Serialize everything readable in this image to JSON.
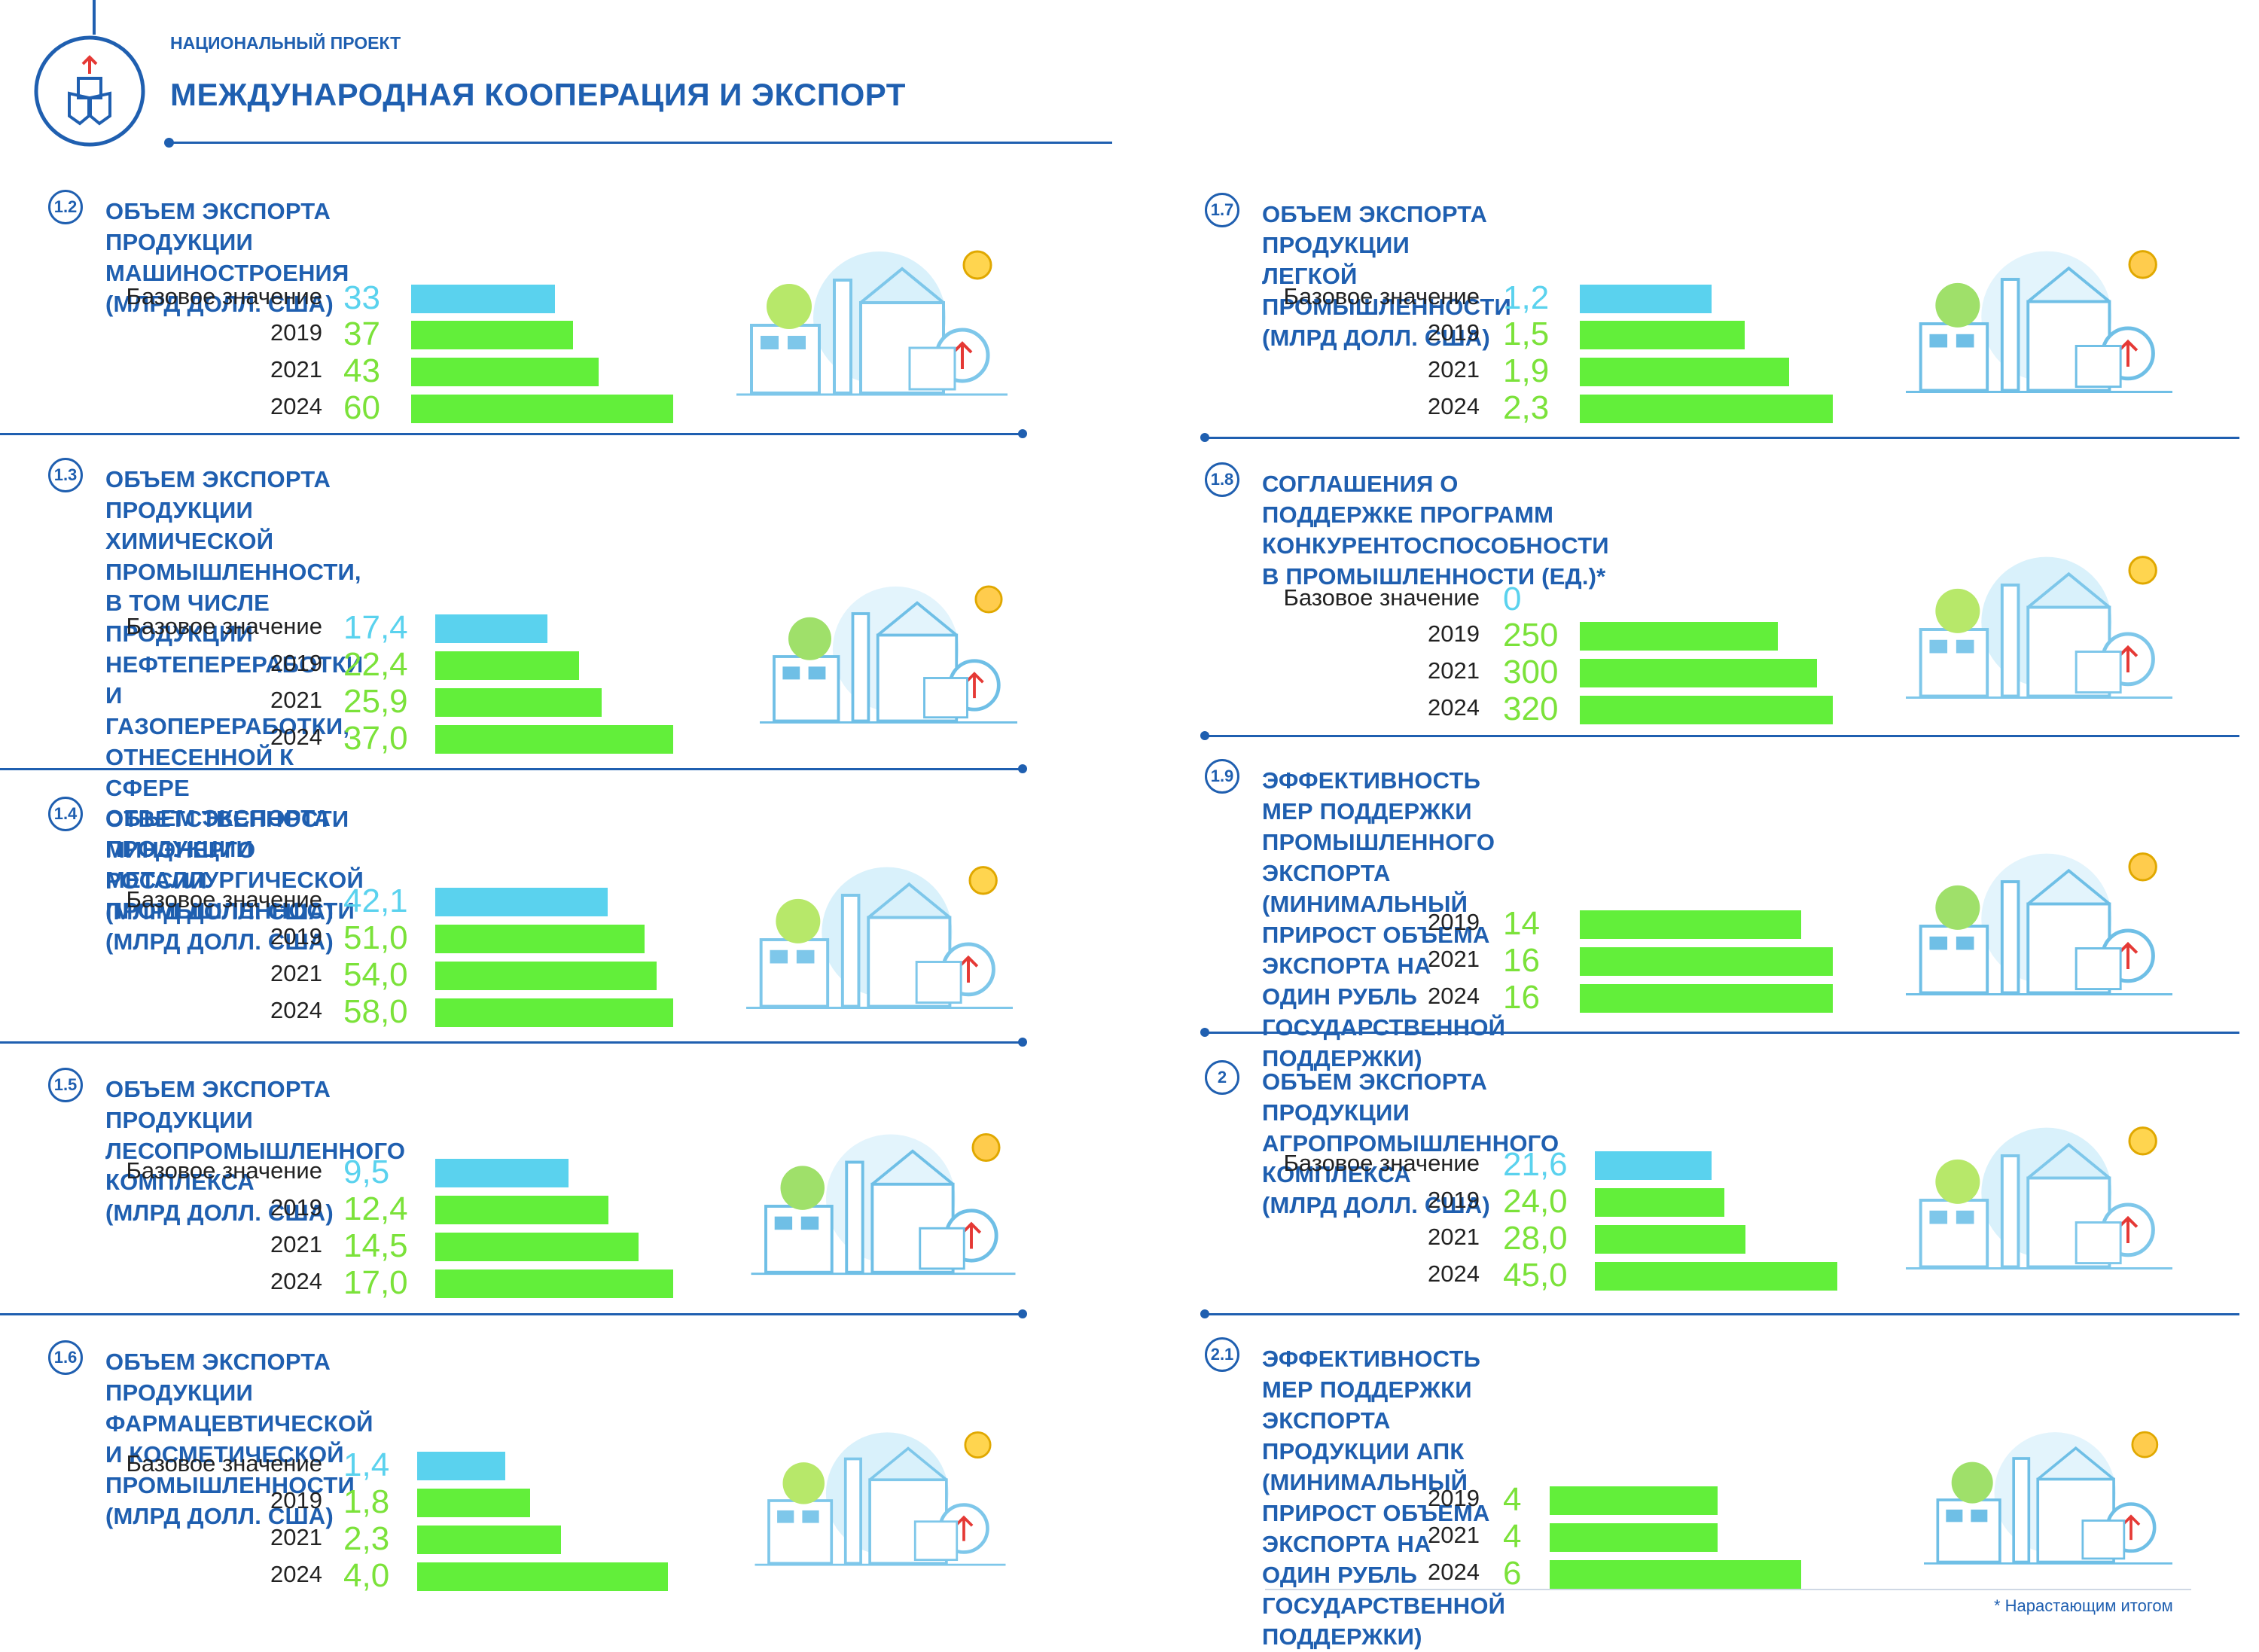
{
  "header": {
    "project_label": "НАЦИОНАЛЬНЫЙ ПРОЕКТ",
    "project_title": "МЕЖДУНАРОДНАЯ КООПЕРАЦИЯ И ЭКСПОРТ"
  },
  "colors": {
    "brand": "#1f5fb0",
    "base_bar": "#5ad2ee",
    "target_bar": "#62ef3a",
    "target_text": "#7be23a"
  },
  "footnote": "* Нарастающим итогом",
  "chart_data": [
    {
      "type": "bar",
      "id": "1.2",
      "badge": "1.2",
      "title": "ОБЪЕМ ЭКСПОРТА ПРОДУКЦИИ МАШИНОСТРОЕНИЯ (МЛРД ДОЛЛ. США)",
      "categories": [
        "Базовое значение",
        "2019",
        "2021",
        "2024"
      ],
      "labels": [
        "33",
        "37",
        "43",
        "60"
      ],
      "values": [
        33,
        37,
        43,
        60
      ],
      "vmax": 60
    },
    {
      "type": "bar",
      "id": "1.3",
      "badge": "1.3",
      "title": "ОБЪЕМ ЭКСПОРТА ПРОДУКЦИИ ХИМИЧЕСКОЙ ПРОМЫШЛЕННОСТИ,\nВ ТОМ ЧИСЛЕ ПРОДУКЦИИ НЕФТЕПЕРЕРАБОТКИ И ГАЗОПЕРЕРАБОТКИ,\nОТНЕСЕННОЙ К СФЕРЕ ОТВЕТСТВЕННОСТИ МИНЭНЕРГО РОССИИ\n(МЛРД ДОЛЛ. США)",
      "categories": [
        "Базовое значение",
        "2019",
        "2021",
        "2024"
      ],
      "labels": [
        "17,4",
        "22,4",
        "25,9",
        "37,0"
      ],
      "values": [
        17.4,
        22.4,
        25.9,
        37.0
      ],
      "vmax": 37
    },
    {
      "type": "bar",
      "id": "1.4",
      "badge": "1.4",
      "title": "ОБЪЕМ ЭКСПОРТА ПРОДУКЦИИ МЕТАЛЛУРГИЧЕСКОЙ ПРОМЫШЛЕННОСТИ\n(МЛРД ДОЛЛ. США)",
      "categories": [
        "Базовое значение",
        "2019",
        "2021",
        "2024"
      ],
      "labels": [
        "42,1",
        "51,0",
        "54,0",
        "58,0"
      ],
      "values": [
        42.1,
        51.0,
        54.0,
        58.0
      ],
      "vmax": 58
    },
    {
      "type": "bar",
      "id": "1.5",
      "badge": "1.5",
      "title": "ОБЪЕМ ЭКСПОРТА ПРОДУКЦИИ ЛЕСОПРОМЫШЛЕННОГО КОМПЛЕКСА\n(МЛРД ДОЛЛ. США)",
      "categories": [
        "Базовое значение",
        "2019",
        "2021",
        "2024"
      ],
      "labels": [
        "9,5",
        "12,4",
        "14,5",
        "17,0"
      ],
      "values": [
        9.5,
        12.4,
        14.5,
        17.0
      ],
      "vmax": 17
    },
    {
      "type": "bar",
      "id": "1.6",
      "badge": "1.6",
      "title": "ОБЪЕМ ЭКСПОРТА ПРОДУКЦИИ ФАРМАЦЕВТИЧЕСКОЙ\nИ КОСМЕТИЧЕСКОЙ ПРОМЫШЛЕННОСТИ (МЛРД ДОЛЛ. США)",
      "categories": [
        "Базовое значение",
        "2019",
        "2021",
        "2024"
      ],
      "labels": [
        "1,4",
        "1,8",
        "2,3",
        "4,0"
      ],
      "values": [
        1.4,
        1.8,
        2.3,
        4.0
      ],
      "vmax": 4
    },
    {
      "type": "bar",
      "id": "1.7",
      "badge": "1.7",
      "title": "ОБЪЕМ ЭКСПОРТА ПРОДУКЦИИ ЛЕГКОЙ ПРОМЫШЛЕННОСТИ\n(МЛРД ДОЛЛ. США)",
      "categories": [
        "Базовое значение",
        "2019",
        "2021",
        "2024"
      ],
      "labels": [
        "1,2",
        "1,5",
        "1,9",
        "2,3"
      ],
      "values": [
        1.2,
        1.5,
        1.9,
        2.3
      ],
      "vmax": 2.3
    },
    {
      "type": "bar",
      "id": "1.8",
      "badge": "1.8",
      "title": "СОГЛАШЕНИЯ О ПОДДЕРЖКЕ ПРОГРАММ КОНКУРЕНТОСПОСОБНОСТИ\nВ ПРОМЫШЛЕННОСТИ (ЕД.)*",
      "categories": [
        "Базовое значение",
        "2019",
        "2021",
        "2024"
      ],
      "labels": [
        "0",
        "250",
        "300",
        "320"
      ],
      "values": [
        0,
        250,
        300,
        320
      ],
      "vmax": 320
    },
    {
      "type": "bar",
      "id": "1.9",
      "badge": "1.9",
      "title": "ЭФФЕКТИВНОСТЬ МЕР ПОДДЕРЖКИ ПРОМЫШЛЕННОГО ЭКСПОРТА\n(МИНИМАЛЬНЫЙ ПРИРОСТ ОБЪЕМА ЭКСПОРТА НА ОДИН РУБЛЬ\nГОСУДАРСТВЕННОЙ ПОДДЕРЖКИ)",
      "categories": [
        "2019",
        "2021",
        "2024"
      ],
      "labels": [
        "14",
        "16",
        "16"
      ],
      "values": [
        14,
        16,
        16
      ],
      "vmax": 16
    },
    {
      "type": "bar",
      "id": "2",
      "badge": "2",
      "title": "ОБЪЕМ ЭКСПОРТА ПРОДУКЦИИ АГРОПРОМЫШЛЕННОГО КОМПЛЕКСА\n(МЛРД ДОЛЛ. США)",
      "categories": [
        "Базовое значение",
        "2019",
        "2021",
        "2024"
      ],
      "labels": [
        "21,6",
        "24,0",
        "28,0",
        "45,0"
      ],
      "values": [
        21.6,
        24.0,
        28.0,
        45.0
      ],
      "vmax": 45
    },
    {
      "type": "bar",
      "id": "2.1",
      "badge": "2.1",
      "title": "ЭФФЕКТИВНОСТЬ МЕР ПОДДЕРЖКИ ЭКСПОРТА ПРОДУКЦИИ АПК\n(МИНИМАЛЬНЫЙ ПРИРОСТ ОБЪЕМА ЭКСПОРТА НА ОДИН РУБЛЬ\nГОСУДАРСТВЕННОЙ ПОДДЕРЖКИ)",
      "categories": [
        "2019",
        "2021",
        "2024"
      ],
      "labels": [
        "4",
        "4",
        "6"
      ],
      "values": [
        4,
        4,
        6
      ],
      "vmax": 6
    }
  ]
}
